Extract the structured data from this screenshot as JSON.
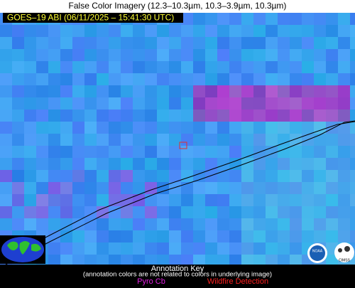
{
  "header": {
    "title": "False Color Imagery (12.3–10.3µm, 10.3–3.9µm, 10.3µm)"
  },
  "overlay": {
    "satellite_label": "GOES–19 ABI (06/11/2025 – 15:41:30 UTC)"
  },
  "annotation_key": {
    "title": "Annotation Key",
    "note": "(annotation colors are not related to colors in underlying image)",
    "items": [
      "Pyro Cb",
      "Wildfire Detection"
    ]
  },
  "logos": {
    "left": "NOAA",
    "right": "CIMSS"
  }
}
